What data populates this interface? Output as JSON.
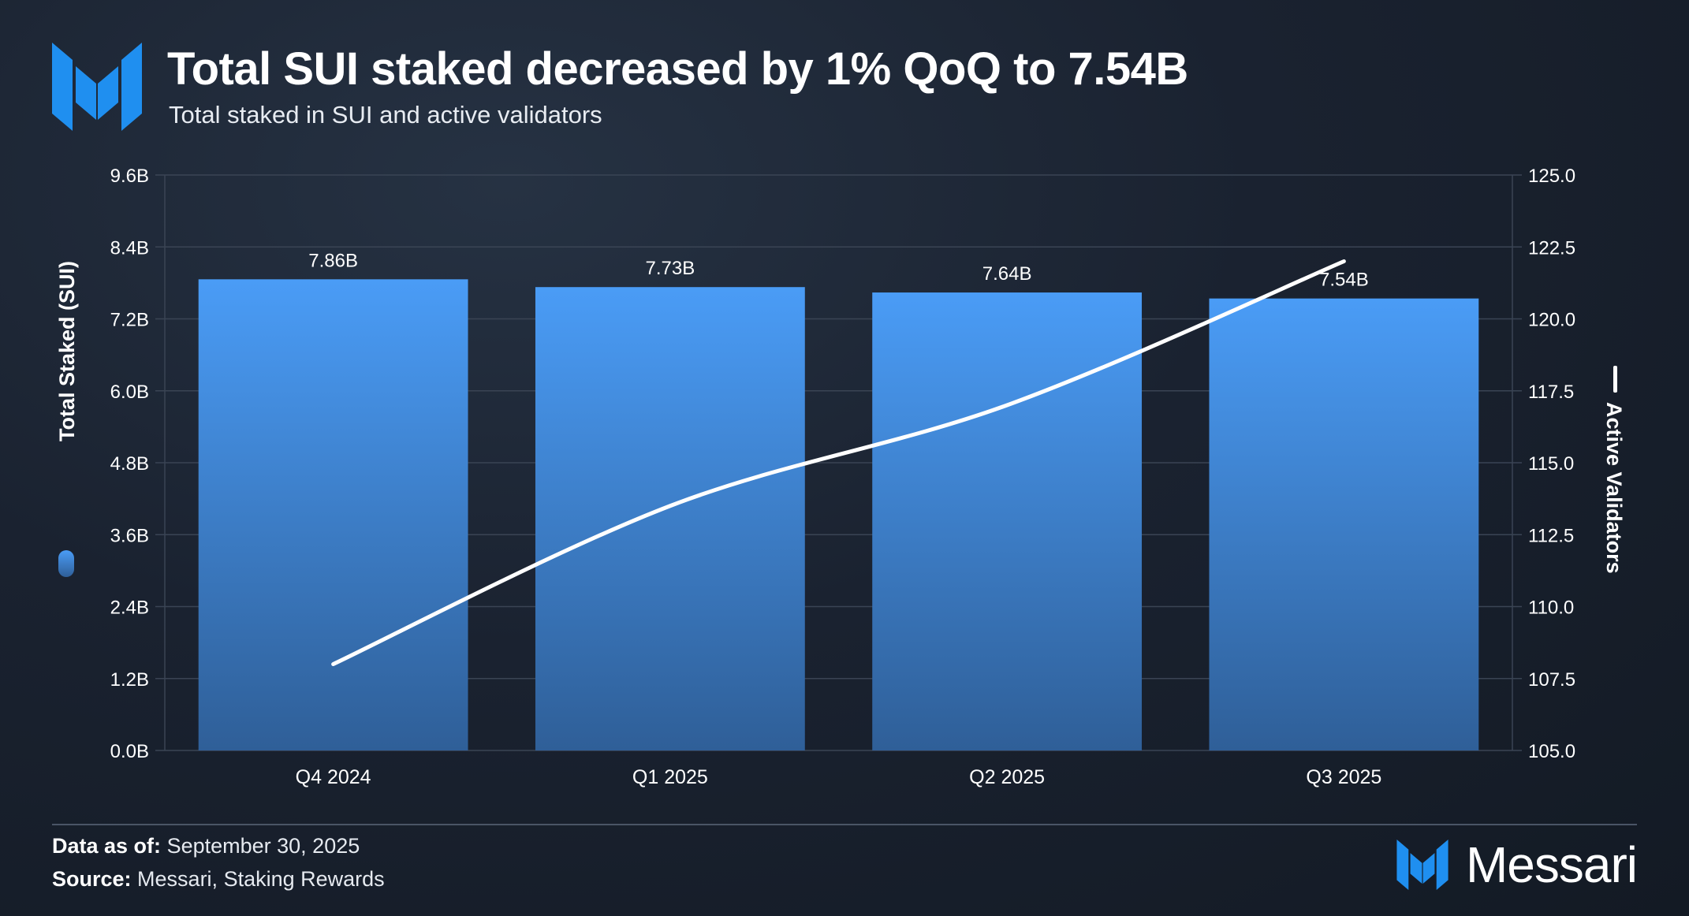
{
  "header": {
    "title": "Total SUI staked decreased by 1% QoQ to 7.54B",
    "subtitle": "Total staked in SUI and active validators"
  },
  "footer": {
    "data_as_of_label": "Data as of:",
    "data_as_of_value": "September 30, 2025",
    "source_label": "Source:",
    "source_value": "Messari, Staking Rewards",
    "brand_name": "Messari"
  },
  "colors": {
    "bar_top": "#4a9cf6",
    "bar_bottom": "#2f5f98",
    "line": "#ffffff",
    "grid": "#3a4454",
    "brand_blue": "#1f8ff0"
  },
  "chart_data": {
    "type": "bar",
    "categories": [
      "Q4 2024",
      "Q1 2025",
      "Q2 2025",
      "Q3 2025"
    ],
    "series": [
      {
        "name": "Total Staked (SUI)",
        "type": "bar",
        "axis": "left",
        "values": [
          7.86,
          7.73,
          7.64,
          7.54
        ],
        "labels": [
          "7.86B",
          "7.73B",
          "7.64B",
          "7.54B"
        ]
      },
      {
        "name": "Active Validators",
        "type": "line",
        "axis": "right",
        "values": [
          108,
          113.5,
          117,
          122
        ]
      }
    ],
    "y_left": {
      "label": "Total Staked (SUI)",
      "ylim": [
        0,
        9.6
      ],
      "ticks": [
        0,
        1.2,
        2.4,
        3.6,
        4.8,
        6.0,
        7.2,
        8.4,
        9.6
      ],
      "tick_labels": [
        "0.0B",
        "1.2B",
        "2.4B",
        "3.6B",
        "4.8B",
        "6.0B",
        "7.2B",
        "8.4B",
        "9.6B"
      ]
    },
    "y_right": {
      "label": "Active Validators",
      "ylim": [
        105,
        125
      ],
      "ticks": [
        105,
        107.5,
        110,
        112.5,
        115,
        117.5,
        120,
        122.5,
        125
      ],
      "tick_labels": [
        "105.0",
        "107.5",
        "110.0",
        "112.5",
        "115.0",
        "117.5",
        "120.0",
        "122.5",
        "125.0"
      ]
    },
    "grid": true
  }
}
